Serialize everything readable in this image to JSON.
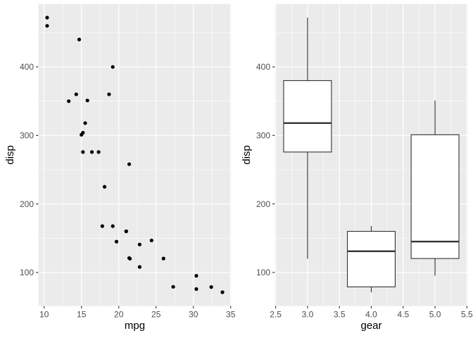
{
  "figure": {
    "background": "#FFFFFF",
    "panels": [
      "scatter disp vs mpg",
      "boxplot disp by gear"
    ]
  },
  "style": {
    "panel_background": "#EBEBEB",
    "grid_color": "#FFFFFF",
    "point_color": "#000000",
    "box_fill": "#FFFFFF",
    "box_stroke": "#333333",
    "axis_text_color": "#4D4D4D",
    "axis_title_color": "#000000",
    "tick_color": "#333333"
  },
  "chart_data": [
    {
      "type": "scatter",
      "title": "",
      "xlabel": "mpg",
      "ylabel": "disp",
      "x_domain": [
        9.225,
        35.075
      ],
      "y_domain": [
        51.055,
        492.045
      ],
      "x_ticks": [
        10,
        15,
        20,
        25,
        30,
        35
      ],
      "x_tick_labels": [
        "10",
        "15",
        "20",
        "25",
        "30",
        "35"
      ],
      "x_minor": [
        12.5,
        17.5,
        22.5,
        27.5,
        32.5
      ],
      "y_ticks": [
        100,
        200,
        300,
        400
      ],
      "y_tick_labels": [
        "100",
        "200",
        "300",
        "400"
      ],
      "y_minor": [
        150,
        250,
        350,
        450
      ],
      "grid": true,
      "legend": "none",
      "points": [
        [
          21.0,
          160.0
        ],
        [
          21.0,
          160.0
        ],
        [
          22.8,
          108.0
        ],
        [
          21.4,
          258.0
        ],
        [
          18.7,
          360.0
        ],
        [
          18.1,
          225.0
        ],
        [
          14.3,
          360.0
        ],
        [
          24.4,
          146.7
        ],
        [
          22.8,
          140.8
        ],
        [
          19.2,
          167.6
        ],
        [
          17.8,
          167.6
        ],
        [
          16.4,
          275.8
        ],
        [
          17.3,
          275.8
        ],
        [
          15.2,
          275.8
        ],
        [
          10.4,
          472.0
        ],
        [
          10.4,
          460.0
        ],
        [
          14.7,
          440.0
        ],
        [
          32.4,
          78.7
        ],
        [
          30.4,
          75.7
        ],
        [
          33.9,
          71.1
        ],
        [
          21.5,
          120.1
        ],
        [
          15.5,
          318.0
        ],
        [
          15.2,
          304.0
        ],
        [
          13.3,
          350.0
        ],
        [
          19.2,
          400.0
        ],
        [
          27.3,
          79.0
        ],
        [
          26.0,
          120.3
        ],
        [
          30.4,
          95.1
        ],
        [
          15.8,
          351.0
        ],
        [
          19.7,
          145.0
        ],
        [
          15.0,
          301.0
        ],
        [
          21.4,
          121.0
        ]
      ]
    },
    {
      "type": "boxplot",
      "title": "",
      "xlabel": "gear",
      "ylabel": "disp",
      "x_domain": [
        2.4875,
        5.5125
      ],
      "y_domain": [
        51.055,
        492.045
      ],
      "x_ticks": [
        2.5,
        3.0,
        3.5,
        4.0,
        4.5,
        5.0,
        5.5
      ],
      "x_tick_labels": [
        "2.5",
        "3.0",
        "3.5",
        "4.0",
        "4.5",
        "5.0",
        "5.5"
      ],
      "x_minor": [
        2.75,
        3.25,
        3.75,
        4.25,
        4.75,
        5.25
      ],
      "y_ticks": [
        100,
        200,
        300,
        400
      ],
      "y_tick_labels": [
        "100",
        "200",
        "300",
        "400"
      ],
      "y_minor": [
        150,
        250,
        350,
        450
      ],
      "grid": true,
      "legend": "none",
      "box_width": 0.75,
      "boxes": [
        {
          "x": 3,
          "whisker_low": 120.1,
          "q1": 275.8,
          "median": 318.0,
          "q3": 380.0,
          "whisker_high": 472.0
        },
        {
          "x": 4,
          "whisker_low": 71.1,
          "q1": 78.925,
          "median": 130.9,
          "q3": 160.0,
          "whisker_high": 167.6
        },
        {
          "x": 5,
          "whisker_low": 95.1,
          "q1": 120.3,
          "median": 145.0,
          "q3": 301.0,
          "whisker_high": 351.0
        }
      ]
    }
  ]
}
